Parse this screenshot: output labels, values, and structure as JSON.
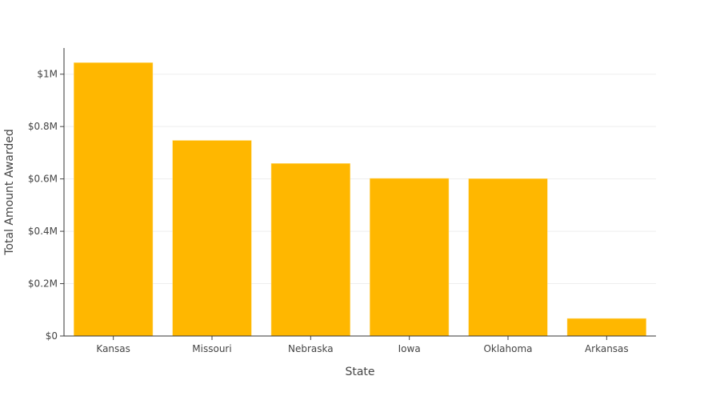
{
  "chart_data": {
    "type": "bar",
    "title": "",
    "xlabel": "State",
    "ylabel": "Total Amount Awarded",
    "categories": [
      "Kansas",
      "Missouri",
      "Nebraska",
      "Iowa",
      "Oklahoma",
      "Arkansas"
    ],
    "values": [
      1044000,
      747000,
      659000,
      602000,
      601000,
      67000
    ],
    "ylim": [
      0,
      1100000
    ],
    "yticks": [
      0,
      200000,
      400000,
      600000,
      800000,
      1000000
    ],
    "ytick_labels": [
      "$0",
      "$0.2M",
      "$0.4M",
      "$0.6M",
      "$0.8M",
      "$1M"
    ],
    "grid": true,
    "legend": "none",
    "bar_color": "#FFB700"
  }
}
